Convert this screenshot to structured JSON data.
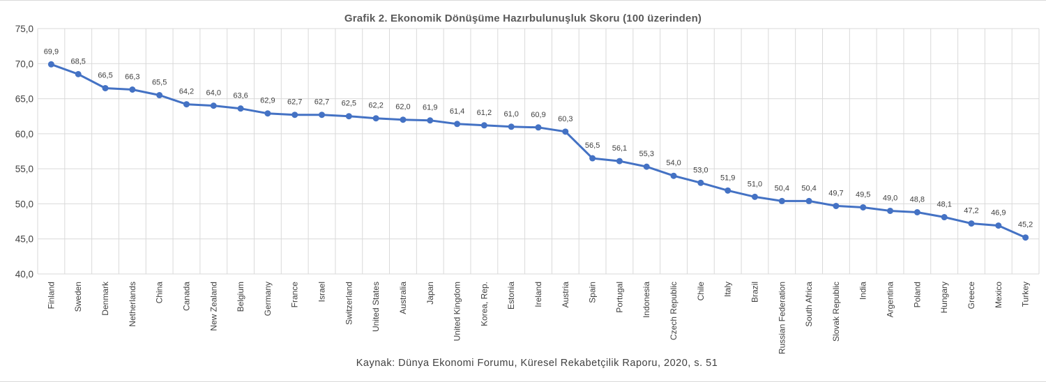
{
  "chart_data": {
    "type": "line",
    "title": "Grafik 2. Ekonomik Dönüşüme Hazırbulunuşluk Skoru (100 üzerinden)",
    "source": "Kaynak: Dünya Ekonomi Forumu,  Küresel Rekabetçilik Raporu, 2020, s. 51",
    "ylim": [
      40,
      75
    ],
    "yticks": [
      "40,0",
      "45,0",
      "50,0",
      "55,0",
      "60,0",
      "65,0",
      "70,0",
      "75,0"
    ],
    "grid": true,
    "line_color": "#4472c4",
    "categories": [
      "Finland",
      "Sweden",
      "Denmark",
      "Netherlands",
      "China",
      "Canada",
      "New Zealand",
      "Belgium",
      "Germany",
      "France",
      "Israel",
      "Switzerland",
      "United States",
      "Australia",
      "Japan",
      "United Kingdom",
      "Korea, Rep.",
      "Estonia",
      "Ireland",
      "Austria",
      "Spain",
      "Portugal",
      "Indonesia",
      "Czech Republic",
      "Chile",
      "Italy",
      "Brazil",
      "Russian Federation",
      "South Africa",
      "Slovak Republic",
      "India",
      "Argentina",
      "Poland",
      "Hungary",
      "Greece",
      "Mexico",
      "Turkey"
    ],
    "values": [
      69.9,
      68.5,
      66.5,
      66.3,
      65.5,
      64.2,
      64.0,
      63.6,
      62.9,
      62.7,
      62.7,
      62.5,
      62.2,
      62.0,
      61.9,
      61.4,
      61.2,
      61.0,
      60.9,
      60.3,
      56.5,
      56.1,
      55.3,
      54.0,
      53.0,
      51.9,
      51.0,
      50.4,
      50.4,
      49.7,
      49.5,
      49.0,
      48.8,
      48.1,
      47.2,
      46.9,
      45.2
    ],
    "data_labels": [
      "69,9",
      "68,5",
      "66,5",
      "66,3",
      "65,5",
      "64,2",
      "64,0",
      "63,6",
      "62,9",
      "62,7",
      "62,7",
      "62,5",
      "62,2",
      "62,0",
      "61,9",
      "61,4",
      "61,2",
      "61,0",
      "60,9",
      "60,3",
      "56,5",
      "56,1",
      "55,3",
      "54,0",
      "53,0",
      "51,9",
      "51,0",
      "50,4",
      "50,4",
      "49,7",
      "49,5",
      "49,0",
      "48,8",
      "48,1",
      "47,2",
      "46,9",
      "45,2"
    ]
  }
}
